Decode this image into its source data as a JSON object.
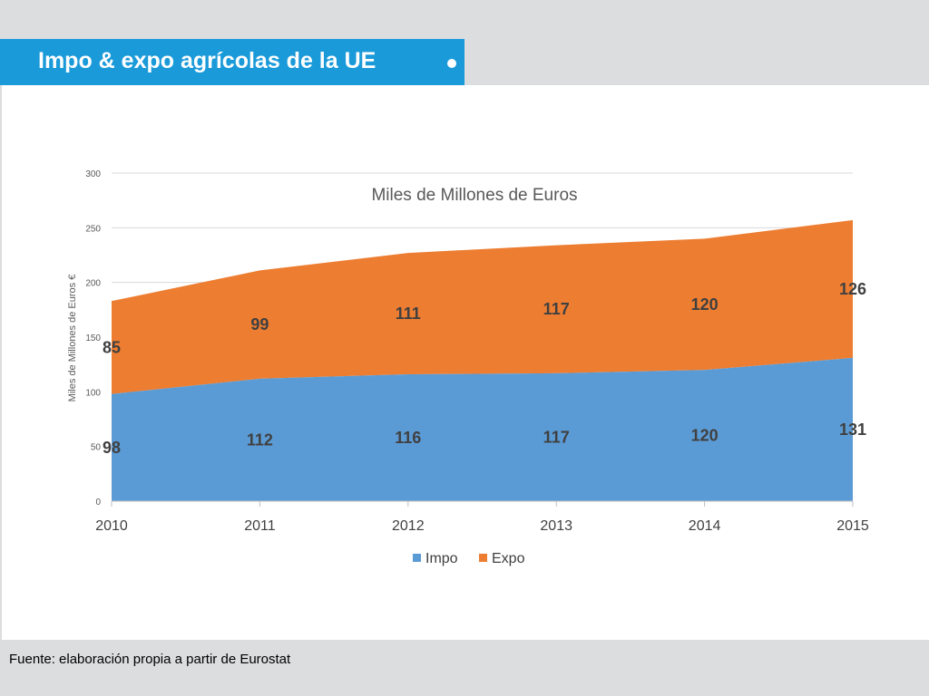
{
  "slide": {
    "title": "Impo & expo agrícolas de la UE",
    "footer": "Fuente: elaboración propia a partir de Eurostat"
  },
  "colors": {
    "title_bar": "#1a9ad9",
    "impo": "#5b9bd5",
    "expo": "#ed7d31"
  },
  "chart_data": {
    "type": "area",
    "stacked": true,
    "title": "Miles de Millones de Euros",
    "ylabel": "Miles de Millones de Euros €",
    "xlabel": "",
    "x": [
      "2010",
      "2011",
      "2012",
      "2013",
      "2014",
      "2015"
    ],
    "ylim": [
      0,
      300
    ],
    "yticks": [
      0,
      50,
      100,
      150,
      200,
      250,
      300
    ],
    "grid": true,
    "legend": "bottom",
    "series": [
      {
        "name": "Impo",
        "values": [
          98,
          112,
          116,
          117,
          120,
          131
        ]
      },
      {
        "name": "Expo",
        "values": [
          85,
          99,
          111,
          117,
          120,
          126
        ]
      }
    ]
  }
}
